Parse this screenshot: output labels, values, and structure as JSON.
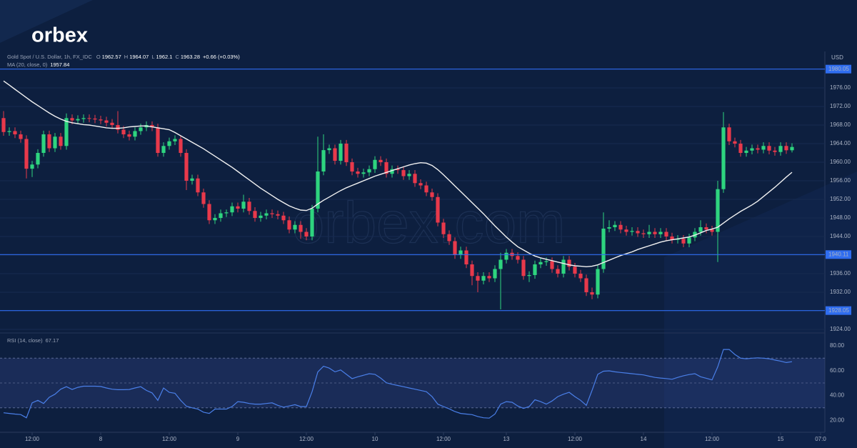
{
  "logo": "orbex",
  "watermark": "orbex.com",
  "chart_data": [
    {
      "type": "candlestick",
      "title": "Gold Spot / U.S. Dollar, 1h, FX_IDC",
      "ohlc_prefixes": [
        "O",
        "H",
        "L",
        "C"
      ],
      "change": "+0.66 (+0.03%)",
      "currency": "USD",
      "up_color": "#2ed47f",
      "down_color": "#e8394b",
      "open": [
        1969.5,
        1966.5,
        1966.7,
        1966,
        1965,
        1958.6,
        1959.5,
        1962,
        1966,
        1963,
        1965.5,
        1963.5,
        1969.5,
        1969,
        1969.3,
        1969.5,
        1969.4,
        1969.2,
        1969,
        1968.5,
        1968,
        1967,
        1966,
        1965.5,
        1966.7,
        1967.5,
        1968,
        1967.5,
        1962,
        1963.5,
        1964.5,
        1965,
        1962,
        1956,
        1956.5,
        1953.5,
        1951,
        1947.5,
        1948,
        1949,
        1949.2,
        1950.5,
        1950,
        1951.5,
        1949.5,
        1948,
        1948.5,
        1949,
        1948.8,
        1948.5,
        1947.5,
        1945.5,
        1946.5,
        1945,
        1944,
        1950,
        1958,
        1962.6,
        1963,
        1960.3,
        1964,
        1960,
        1958,
        1957.5,
        1957.8,
        1958.5,
        1960.5,
        1960,
        1957.5,
        1958.5,
        1958.3,
        1957,
        1957.5,
        1955.5,
        1955,
        1953.5,
        1952.5,
        1947,
        1944.5,
        1943,
        1940,
        1941,
        1938,
        1935.5,
        1934.5,
        1935.5,
        1935,
        1937,
        1939,
        1940.5,
        1939.8,
        1939,
        1935.5,
        1935.7,
        1938,
        1938.5,
        1938.7,
        1937,
        1936,
        1939,
        1937.5,
        1936,
        1935,
        1932,
        1931.5,
        1937,
        1945.7,
        1946,
        1946.5,
        1945.5,
        1945,
        1945.2,
        1944.7,
        1944.5,
        1945,
        1944.5,
        1945,
        1944,
        1943.3,
        1943.5,
        1942.5,
        1943.8,
        1945,
        1946,
        1945.5,
        1945,
        1954.2,
        1967.5,
        1964.5,
        1964,
        1962,
        1962.5,
        1963,
        1962.7,
        1963.5,
        1962.5,
        1962.2,
        1963.5,
        1962.57
      ],
      "high": [
        1971,
        1967.5,
        1967.5,
        1966.8,
        1965.8,
        1960.3,
        1962.8,
        1966.8,
        1966.8,
        1966.3,
        1966.3,
        1970.5,
        1970.3,
        1970.1,
        1970.3,
        1970.3,
        1970.2,
        1970,
        1969.8,
        1969.3,
        1971,
        1967.8,
        1966.8,
        1967.5,
        1968.3,
        1968.8,
        1968.8,
        1968.3,
        1964.3,
        1965.3,
        1965.8,
        1965.8,
        1962.8,
        1957.3,
        1957.3,
        1954.3,
        1951.8,
        1948.8,
        1949.8,
        1949.8,
        1951.3,
        1951.3,
        1953,
        1952.3,
        1950.3,
        1949.3,
        1949.8,
        1949.8,
        1949.6,
        1949.3,
        1948.3,
        1947.3,
        1947.3,
        1945.8,
        1950.8,
        1965.5,
        1966,
        1963.8,
        1963.8,
        1964.8,
        1964.8,
        1960.8,
        1958.8,
        1958.6,
        1959.3,
        1961.3,
        1961.3,
        1960.8,
        1959.3,
        1959.3,
        1959.1,
        1958.3,
        1958.3,
        1956.3,
        1955.8,
        1954.3,
        1953.3,
        1947.8,
        1945.3,
        1943.8,
        1941.8,
        1941.8,
        1938.8,
        1936.3,
        1936.3,
        1936.3,
        1937.8,
        1940.5,
        1941.3,
        1941.3,
        1940.6,
        1939.8,
        1936.5,
        1938.8,
        1939.3,
        1939.5,
        1939.5,
        1937.8,
        1939.8,
        1939.8,
        1938.3,
        1936.8,
        1935.8,
        1933,
        1937.8,
        1949.2,
        1947.5,
        1947.3,
        1947.3,
        1946.3,
        1946,
        1946,
        1945.5,
        1946.5,
        1945.8,
        1945.8,
        1945.8,
        1944.8,
        1944.3,
        1944.3,
        1944.6,
        1945.8,
        1947.5,
        1946.8,
        1946.3,
        1956,
        1970.8,
        1968.3,
        1965.3,
        1964.8,
        1963.3,
        1963.8,
        1963.8,
        1964.3,
        1964.3,
        1963.3,
        1964.3,
        1964.3,
        1964.07
      ],
      "low": [
        1965.7,
        1965.7,
        1965.2,
        1964.2,
        1956.5,
        1956.8,
        1958.7,
        1961.2,
        1962.2,
        1962.2,
        1962.7,
        1962.7,
        1968.2,
        1968.2,
        1968.5,
        1968.6,
        1968.4,
        1968.2,
        1967.7,
        1967.2,
        1966.2,
        1965.2,
        1964.7,
        1964.7,
        1965.9,
        1966.7,
        1966.7,
        1961.2,
        1961.2,
        1962.7,
        1963.7,
        1961.2,
        1954,
        1955.2,
        1952.7,
        1950.2,
        1946.7,
        1946.7,
        1947.2,
        1948.2,
        1948.4,
        1949.2,
        1949.2,
        1948.7,
        1947.2,
        1947.2,
        1947.7,
        1948,
        1947.7,
        1946.7,
        1944.7,
        1944.7,
        1943.5,
        1943.2,
        1943.2,
        1949.2,
        1957.2,
        1961.8,
        1959.5,
        1959.5,
        1959.2,
        1957.2,
        1956.7,
        1956.7,
        1957,
        1957.7,
        1959.2,
        1956.7,
        1956.7,
        1957.5,
        1956.2,
        1956.2,
        1954.7,
        1954.2,
        1952.7,
        1951.7,
        1946.2,
        1943.7,
        1942.2,
        1939.2,
        1939.2,
        1937.2,
        1933.5,
        1932,
        1933.7,
        1934.2,
        1934.2,
        1928.3,
        1938.2,
        1939,
        1938.2,
        1934.7,
        1934.2,
        1934.9,
        1937.2,
        1937.7,
        1936.2,
        1935.2,
        1935.2,
        1936.7,
        1935.2,
        1934.2,
        1931.2,
        1930.5,
        1930.7,
        1936.2,
        1944.9,
        1945.2,
        1944.7,
        1944.2,
        1944.2,
        1943.9,
        1943.7,
        1943.7,
        1943.7,
        1943.7,
        1943.2,
        1942.5,
        1942.5,
        1941.7,
        1941.7,
        1943,
        1944.2,
        1944.7,
        1944.2,
        1938.5,
        1953.4,
        1963.7,
        1963.2,
        1961.2,
        1961.2,
        1961.7,
        1961.9,
        1961.9,
        1961.7,
        1961.4,
        1961.4,
        1961.8,
        1962.1
      ],
      "close": [
        1966.5,
        1966.7,
        1966,
        1965,
        1958.6,
        1959.5,
        1962,
        1966,
        1963,
        1965.5,
        1963.5,
        1969.5,
        1969,
        1969.3,
        1969.5,
        1969.4,
        1969.2,
        1969,
        1968.5,
        1968,
        1967,
        1966,
        1965.5,
        1966.7,
        1967.5,
        1968,
        1967.5,
        1962,
        1963.5,
        1964.5,
        1965,
        1962,
        1956,
        1956.5,
        1953.5,
        1951,
        1947.5,
        1948,
        1949,
        1949.2,
        1950.5,
        1950,
        1951.5,
        1949.5,
        1948,
        1948.5,
        1949,
        1948.8,
        1948.5,
        1947.5,
        1945.5,
        1946.5,
        1945,
        1944,
        1950,
        1958,
        1962.6,
        1963,
        1960.3,
        1964,
        1960,
        1958,
        1957.5,
        1957.8,
        1958.5,
        1960.5,
        1960,
        1957.5,
        1958.5,
        1958.3,
        1957,
        1957.5,
        1955.5,
        1955,
        1953.5,
        1952.5,
        1947,
        1944.5,
        1943,
        1940,
        1941,
        1938,
        1935.5,
        1934.5,
        1935.5,
        1935,
        1937,
        1939,
        1940.5,
        1939.8,
        1939,
        1935.5,
        1935.7,
        1938,
        1938.5,
        1938.7,
        1937,
        1936,
        1939,
        1937.5,
        1936,
        1935,
        1932,
        1931.5,
        1937,
        1945.7,
        1946,
        1946.5,
        1945.5,
        1945,
        1945.2,
        1944.7,
        1944.5,
        1945,
        1944.5,
        1945,
        1944,
        1943.3,
        1943.5,
        1942.5,
        1943.8,
        1945,
        1946,
        1945.5,
        1945,
        1954.2,
        1967.5,
        1964.5,
        1964,
        1962,
        1962.5,
        1963,
        1962.7,
        1963.5,
        1962.5,
        1962.2,
        1963.5,
        1962.57,
        1963.28
      ],
      "ma": {
        "name": "MA (20, close, 0)",
        "color": "#f2f2f2",
        "values": [
          1977.5,
          1976.6,
          1975.7,
          1974.8,
          1973.9,
          1973,
          1972.2,
          1971.4,
          1970.6,
          1969.9,
          1969.3,
          1968.8,
          1968.5,
          1968.3,
          1968.1,
          1968,
          1967.8,
          1967.6,
          1967.4,
          1967.3,
          1967.3,
          1967.4,
          1967.6,
          1967.7,
          1967.8,
          1967.8,
          1967.6,
          1967.4,
          1967.2,
          1967,
          1966.4,
          1965.7,
          1965,
          1964.3,
          1963.6,
          1962.9,
          1962.1,
          1961.3,
          1960.5,
          1959.7,
          1958.9,
          1958,
          1957.1,
          1956.2,
          1955.3,
          1954.4,
          1953.6,
          1952.8,
          1952,
          1951.3,
          1950.6,
          1950.1,
          1949.7,
          1949.6,
          1950.1,
          1951,
          1951.8,
          1952.5,
          1953.2,
          1953.9,
          1954.5,
          1955,
          1955.5,
          1956,
          1956.5,
          1957,
          1957.4,
          1957.8,
          1958.2,
          1958.6,
          1959,
          1959.4,
          1959.7,
          1959.9,
          1959.8,
          1959.3,
          1958.4,
          1957.3,
          1956.1,
          1954.9,
          1953.7,
          1952.5,
          1951.3,
          1950.1,
          1948.9,
          1947.6,
          1946.3,
          1945.1,
          1943.9,
          1942.8,
          1941.8,
          1941.1,
          1940.4,
          1939.8,
          1939.4,
          1939.1,
          1938.8,
          1938.5,
          1938.2,
          1937.9,
          1937.7,
          1937.6,
          1937.5,
          1937.6,
          1937.9,
          1938.4,
          1938.9,
          1939.4,
          1939.9,
          1940.3,
          1940.7,
          1941.2,
          1941.6,
          1942,
          1942.4,
          1942.8,
          1943.1,
          1943.3,
          1943.5,
          1943.7,
          1943.9,
          1944.3,
          1944.8,
          1945.3,
          1945.6,
          1946,
          1946.9,
          1947.8,
          1948.6,
          1949.4,
          1950.1,
          1950.8,
          1951.6,
          1952.6,
          1953.6,
          1954.6,
          1955.7,
          1956.8,
          1957.84
        ]
      },
      "levels": [
        1980.05,
        1940.11,
        1928.05
      ],
      "level_color": "#2f6df0",
      "ylim": [
        1923.23,
        1983.85
      ],
      "yticks": [
        {
          "value": 1924,
          "label": "1924.00"
        },
        {
          "value": 1928,
          "label": "1928.00"
        },
        {
          "value": 1932,
          "label": "1932.00"
        },
        {
          "value": 1936,
          "label": "1936.00"
        },
        {
          "value": 1940,
          "label": "1940.00"
        },
        {
          "value": 1944,
          "label": "1944.00"
        },
        {
          "value": 1948,
          "label": "1948.00"
        },
        {
          "value": 1952,
          "label": "1952.00"
        },
        {
          "value": 1956,
          "label": "1956.00"
        },
        {
          "value": 1960,
          "label": "1960.00"
        },
        {
          "value": 1964,
          "label": "1964.00"
        },
        {
          "value": 1968,
          "label": "1968.00"
        },
        {
          "value": 1972,
          "label": "1972.00"
        },
        {
          "value": 1976,
          "label": "1976.00"
        }
      ],
      "xlim": [
        -0.625,
        143.75
      ],
      "xticks": [
        {
          "value": 5,
          "label": "12:00"
        },
        {
          "value": 17,
          "label": "8"
        },
        {
          "value": 29,
          "label": "12:00"
        },
        {
          "value": 41,
          "label": "9"
        },
        {
          "value": 53,
          "label": "12:00"
        },
        {
          "value": 65,
          "label": "10"
        },
        {
          "value": 77,
          "label": "12:00"
        },
        {
          "value": 88,
          "label": "13"
        },
        {
          "value": 100,
          "label": "12:00"
        },
        {
          "value": 112,
          "label": "14"
        },
        {
          "value": 124,
          "label": "12:00"
        },
        {
          "value": 136,
          "label": "15"
        },
        {
          "value": 143,
          "label": "07:0"
        }
      ]
    },
    {
      "type": "line",
      "name": "RSI (14, close)",
      "color": "#4a7fe8",
      "values": [
        26,
        25.5,
        25,
        24.6,
        22,
        34,
        36,
        33.5,
        38.5,
        41,
        45,
        47,
        44.8,
        46.5,
        47.4,
        47.4,
        47.4,
        47.2,
        46,
        45,
        44.6,
        44.6,
        44.8,
        46,
        47,
        44,
        42,
        36,
        46,
        42.5,
        41.7,
        36,
        31.3,
        30,
        29,
        26.5,
        25.5,
        29,
        29,
        29,
        31,
        35,
        34.5,
        33.5,
        33,
        33,
        33.5,
        34,
        32,
        30.5,
        31.5,
        32.5,
        31,
        31,
        43,
        58.9,
        63.5,
        62,
        59,
        60.5,
        57,
        53.5,
        55,
        56.2,
        57.5,
        57,
        54,
        50.2,
        49,
        48,
        47,
        46,
        45,
        44,
        43,
        39,
        33,
        31,
        29.2,
        27,
        25.5,
        25,
        24.5,
        23,
        22,
        21.7,
        25,
        33,
        35,
        34.5,
        31.5,
        29.5,
        31,
        36.5,
        35,
        33,
        35.5,
        39,
        41,
        42.5,
        39,
        36,
        32,
        44,
        57,
        59.5,
        59.8,
        59,
        58.5,
        58,
        57.5,
        57,
        56.5,
        55.5,
        54.5,
        54,
        53.6,
        53,
        54.5,
        55.8,
        56.8,
        57.5,
        55,
        53.8,
        52.5,
        63,
        77,
        77,
        73,
        70,
        69.5,
        70,
        70.3,
        70,
        69.5,
        68.5,
        67.6,
        66.5,
        67.17
      ],
      "band": [
        30,
        70
      ],
      "midline": 50,
      "ylim": [
        10.3,
        90.3
      ],
      "yticks": [
        {
          "value": 20,
          "label": "20.00"
        },
        {
          "value": 40,
          "label": "40.00"
        },
        {
          "value": 60,
          "label": "60.00"
        },
        {
          "value": 80,
          "label": "80.00"
        }
      ]
    }
  ]
}
